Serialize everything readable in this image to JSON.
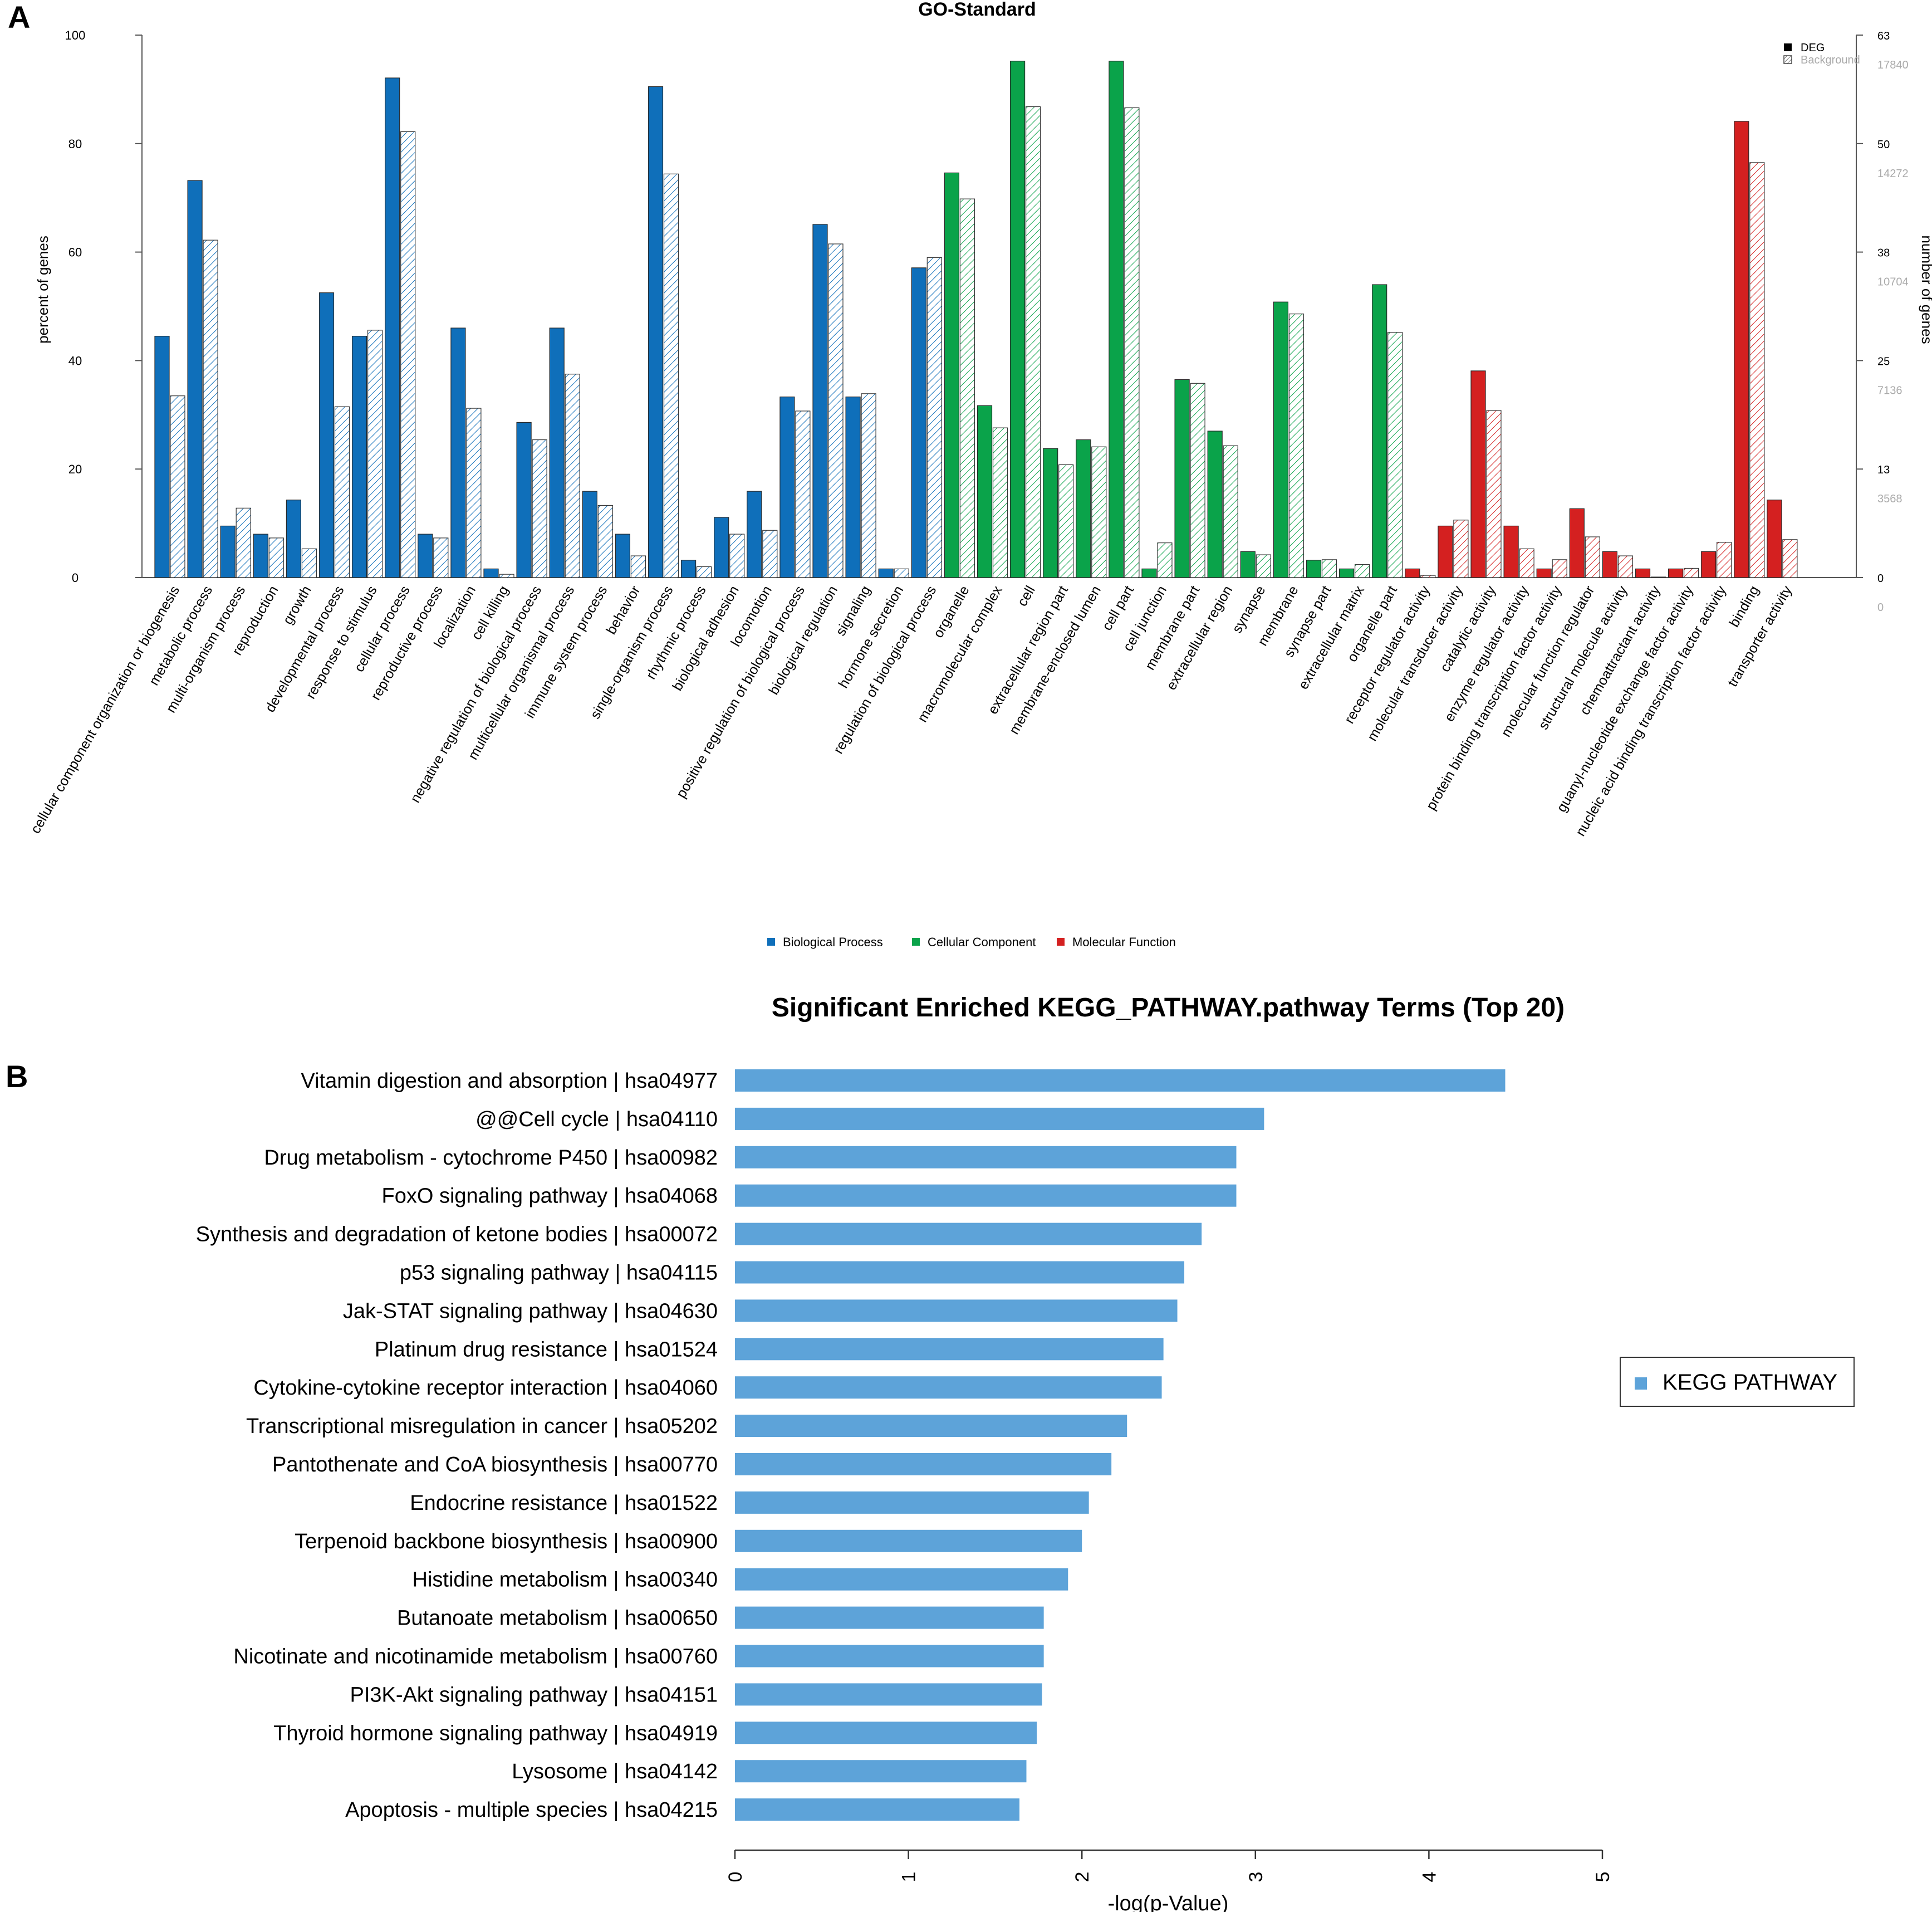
{
  "chart_data": [
    {
      "panel_label": "A",
      "type": "bar",
      "title": "GO-Standard",
      "ylabel": "percent of genes",
      "ylabel_right": "number of genes",
      "ylim": [
        0,
        100
      ],
      "yticks": [
        0,
        20,
        40,
        60,
        80,
        100
      ],
      "right_ticks_deg": [
        0,
        13,
        25,
        38,
        50,
        63
      ],
      "right_ticks_background": [
        0,
        3568,
        7136,
        10704,
        14272,
        17840
      ],
      "legend_pattern": [
        "DEG",
        "Background"
      ],
      "legend_groups": [
        {
          "name": "Biological Process",
          "color": "#0f6fba"
        },
        {
          "name": "Cellular Component",
          "color": "#0aa34a"
        },
        {
          "name": "Molecular Function",
          "color": "#d42020"
        }
      ],
      "categories": [
        {
          "label": "cellular component organization or biogenesis",
          "group": 0,
          "deg": 44.5,
          "bg": 33.5
        },
        {
          "label": "metabolic process",
          "group": 0,
          "deg": 73.2,
          "bg": 62.2
        },
        {
          "label": "multi-organism process",
          "group": 0,
          "deg": 9.5,
          "bg": 12.8
        },
        {
          "label": "reproduction",
          "group": 0,
          "deg": 8.0,
          "bg": 7.3
        },
        {
          "label": "growth",
          "group": 0,
          "deg": 14.3,
          "bg": 5.3
        },
        {
          "label": "developmental process",
          "group": 0,
          "deg": 52.5,
          "bg": 31.5
        },
        {
          "label": "response to stimulus",
          "group": 0,
          "deg": 44.5,
          "bg": 45.6
        },
        {
          "label": "cellular process",
          "group": 0,
          "deg": 92.1,
          "bg": 82.2
        },
        {
          "label": "reproductive process",
          "group": 0,
          "deg": 8.0,
          "bg": 7.3
        },
        {
          "label": "localization",
          "group": 0,
          "deg": 46.0,
          "bg": 31.2
        },
        {
          "label": "cell killing",
          "group": 0,
          "deg": 1.6,
          "bg": 0.6
        },
        {
          "label": "negative regulation of biological process",
          "group": 0,
          "deg": 28.6,
          "bg": 25.4
        },
        {
          "label": "multicellular organismal process",
          "group": 0,
          "deg": 46.0,
          "bg": 37.5
        },
        {
          "label": "immune system process",
          "group": 0,
          "deg": 15.9,
          "bg": 13.3
        },
        {
          "label": "behavior",
          "group": 0,
          "deg": 8.0,
          "bg": 4.0
        },
        {
          "label": "single-organism process",
          "group": 0,
          "deg": 90.5,
          "bg": 74.4
        },
        {
          "label": "rhythmic process",
          "group": 0,
          "deg": 3.2,
          "bg": 2.0
        },
        {
          "label": "biological adhesion",
          "group": 0,
          "deg": 11.1,
          "bg": 8.0
        },
        {
          "label": "locomotion",
          "group": 0,
          "deg": 15.9,
          "bg": 8.7
        },
        {
          "label": "positive regulation of biological process",
          "group": 0,
          "deg": 33.3,
          "bg": 30.7
        },
        {
          "label": "biological regulation",
          "group": 0,
          "deg": 65.1,
          "bg": 61.5
        },
        {
          "label": "signaling",
          "group": 0,
          "deg": 33.3,
          "bg": 33.9
        },
        {
          "label": "hormone secretion",
          "group": 0,
          "deg": 1.6,
          "bg": 1.6
        },
        {
          "label": "regulation of biological process",
          "group": 0,
          "deg": 57.1,
          "bg": 59.0
        },
        {
          "label": "organelle",
          "group": 1,
          "deg": 74.6,
          "bg": 69.8
        },
        {
          "label": "macromolecular complex",
          "group": 1,
          "deg": 31.7,
          "bg": 27.6
        },
        {
          "label": "cell",
          "group": 1,
          "deg": 95.2,
          "bg": 86.8
        },
        {
          "label": "extracellular region part",
          "group": 1,
          "deg": 23.8,
          "bg": 20.8
        },
        {
          "label": "membrane-enclosed lumen",
          "group": 1,
          "deg": 25.4,
          "bg": 24.1
        },
        {
          "label": "cell part",
          "group": 1,
          "deg": 95.2,
          "bg": 86.6
        },
        {
          "label": "cell junction",
          "group": 1,
          "deg": 1.6,
          "bg": 6.4
        },
        {
          "label": "membrane part",
          "group": 1,
          "deg": 36.5,
          "bg": 35.8
        },
        {
          "label": "extracellular region",
          "group": 1,
          "deg": 27.0,
          "bg": 24.3
        },
        {
          "label": "synapse",
          "group": 1,
          "deg": 4.8,
          "bg": 4.2
        },
        {
          "label": "membrane",
          "group": 1,
          "deg": 50.8,
          "bg": 48.6
        },
        {
          "label": "synapse part",
          "group": 1,
          "deg": 3.2,
          "bg": 3.3
        },
        {
          "label": "extracellular matrix",
          "group": 1,
          "deg": 1.6,
          "bg": 2.4
        },
        {
          "label": "organelle part",
          "group": 1,
          "deg": 54.0,
          "bg": 45.2
        },
        {
          "label": "receptor regulator activity",
          "group": 2,
          "deg": 1.6,
          "bg": 0.4
        },
        {
          "label": "molecular transducer activity",
          "group": 2,
          "deg": 9.5,
          "bg": 10.6
        },
        {
          "label": "catalytic activity",
          "group": 2,
          "deg": 38.1,
          "bg": 30.8
        },
        {
          "label": "enzyme regulator activity",
          "group": 2,
          "deg": 9.5,
          "bg": 5.3
        },
        {
          "label": "protein binding transcription factor activity",
          "group": 2,
          "deg": 1.6,
          "bg": 3.3
        },
        {
          "label": "molecular function regulator",
          "group": 2,
          "deg": 12.7,
          "bg": 7.5
        },
        {
          "label": "structural molecule activity",
          "group": 2,
          "deg": 4.8,
          "bg": 4.0
        },
        {
          "label": "chemoattractant activity",
          "group": 2,
          "deg": 1.6,
          "bg": 0.1
        },
        {
          "label": "guanyl-nucleotide exchange factor activity",
          "group": 2,
          "deg": 1.6,
          "bg": 1.7
        },
        {
          "label": "nucleic acid binding transcription factor activity",
          "group": 2,
          "deg": 4.8,
          "bg": 6.5
        },
        {
          "label": "binding",
          "group": 2,
          "deg": 84.1,
          "bg": 76.5
        },
        {
          "label": "transporter activity",
          "group": 2,
          "deg": 14.3,
          "bg": 7.0
        }
      ]
    },
    {
      "panel_label": "B",
      "type": "bar",
      "orientation": "horizontal",
      "title": "Significant Enriched KEGG_PATHWAY.pathway Terms (Top 20)",
      "xlabel": "-log(p-Value)",
      "xlim": [
        0,
        5
      ],
      "xticks": [
        "0",
        "1",
        "2",
        "3",
        "4",
        "5"
      ],
      "legend": "KEGG PATHWAY",
      "color": "#5da3d9",
      "categories": [
        "Vitamin digestion and absorption | hsa04977",
        "@@Cell cycle | hsa04110",
        "Drug metabolism - cytochrome P450 | hsa00982",
        "FoxO signaling pathway | hsa04068",
        "Synthesis and degradation of ketone bodies | hsa00072",
        "p53 signaling pathway | hsa04115",
        "Jak-STAT signaling pathway | hsa04630",
        "Platinum drug resistance | hsa01524",
        "Cytokine-cytokine receptor interaction | hsa04060",
        "Transcriptional misregulation in cancer | hsa05202",
        "Pantothenate and CoA biosynthesis | hsa00770",
        "Endocrine resistance | hsa01522",
        "Terpenoid backbone biosynthesis | hsa00900",
        "Histidine metabolism | hsa00340",
        "Butanoate metabolism | hsa00650",
        "Nicotinate and nicotinamide metabolism | hsa00760",
        "PI3K-Akt signaling pathway | hsa04151",
        "Thyroid hormone signaling pathway | hsa04919",
        "Lysosome | hsa04142",
        "Apoptosis - multiple species | hsa04215"
      ],
      "values": [
        4.44,
        3.05,
        2.89,
        2.89,
        2.69,
        2.59,
        2.55,
        2.47,
        2.46,
        2.26,
        2.17,
        2.04,
        2.0,
        1.92,
        1.78,
        1.78,
        1.77,
        1.74,
        1.68,
        1.64
      ]
    }
  ]
}
